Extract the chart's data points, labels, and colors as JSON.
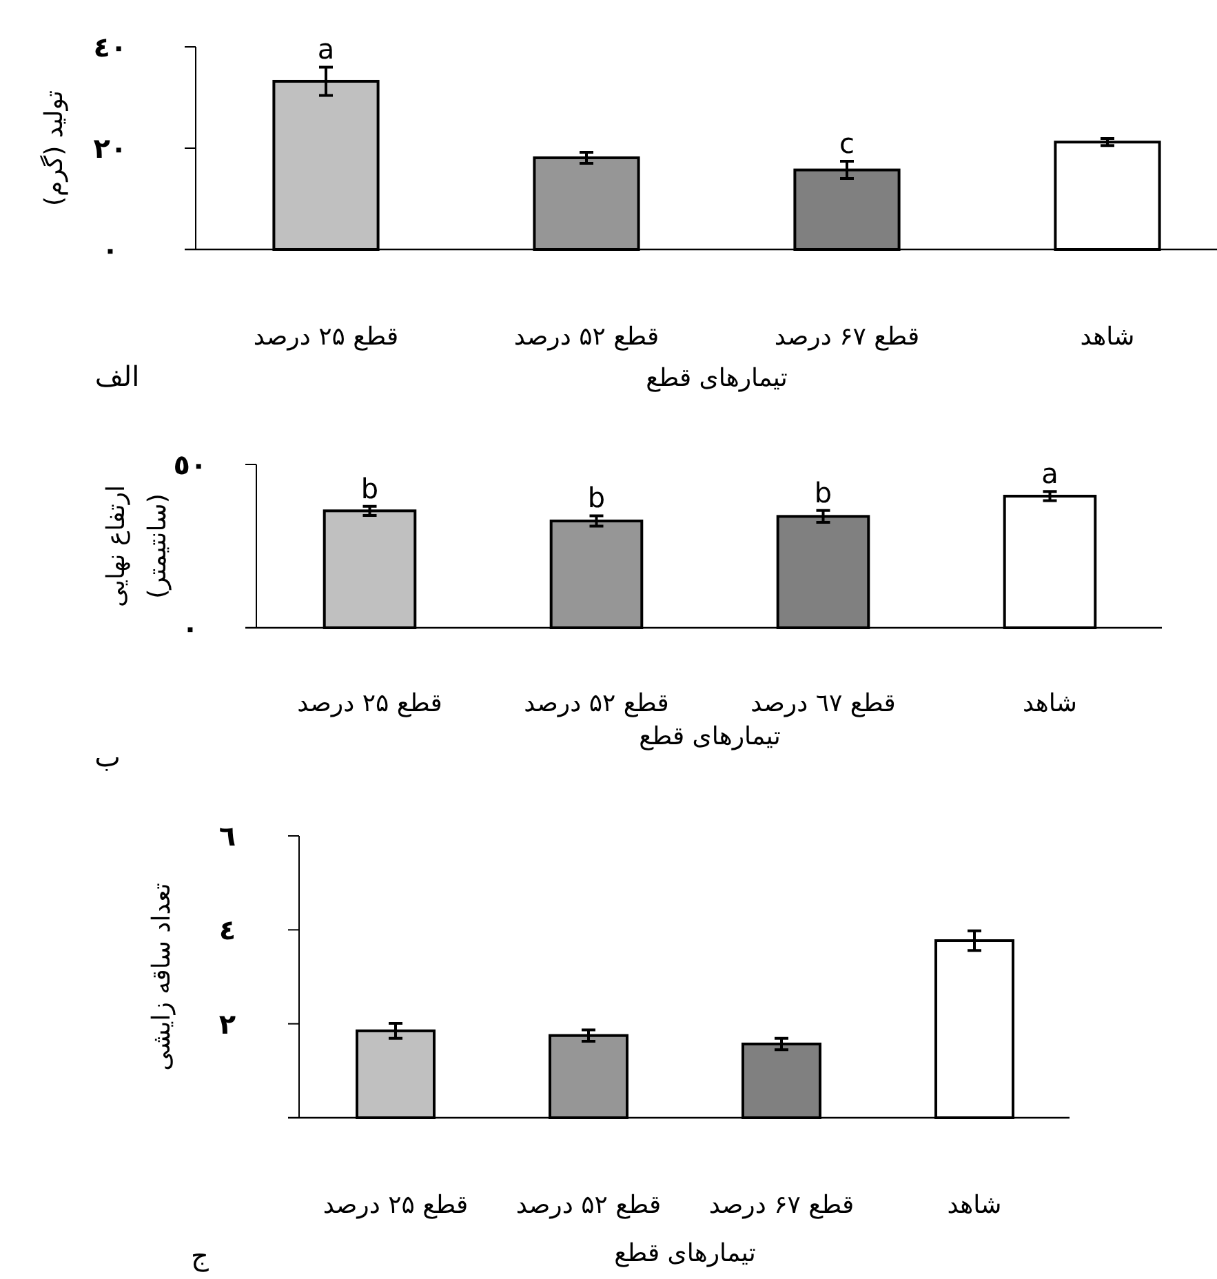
{
  "chart_data": [
    {
      "type": "bar",
      "categories": [
        "قطع ۲۵ درصد",
        "قطع ۵۲ درصد",
        "قطع ۶۷ درصد",
        "شاهد"
      ],
      "values": [
        33.2,
        18.1,
        15.7,
        21.2
      ],
      "colors": [
        "#c0c0c0",
        "#969696",
        "#808080",
        "#ffffff"
      ],
      "errors": [
        2.8,
        1.1,
        1.7,
        0.7
      ],
      "ylim": [
        0,
        40
      ],
      "yticks": [
        {
          "value": 0,
          "label": "٠"
        },
        {
          "value": 20,
          "label": "٢٠"
        },
        {
          "value": 40,
          "label": "٤٠"
        }
      ],
      "xlabel": "تیمارهای قطع",
      "ylabel": "تولید (گرم)",
      "annotations": [
        {
          "text": "a",
          "x": "قطع ۲۵ درصد",
          "y": 33.2
        },
        {
          "text": "c",
          "x": "قطع ۶۷ درصد",
          "y": 15.7
        },
        "الف"
      ]
    },
    {
      "type": "bar",
      "categories": [
        "قطع ۲۵ درصد",
        "قطع ۵۲ درصد",
        "قطع ٦٧ درصد",
        "شاهد"
      ],
      "values": [
        35.8,
        32.7,
        34.1,
        40.3
      ],
      "colors": [
        "#c0c0c0",
        "#969696",
        "#808080",
        "#ffffff"
      ],
      "errors": [
        1.4,
        1.6,
        1.8,
        1.4
      ],
      "ylim": [
        0,
        50
      ],
      "yticks": [
        {
          "value": 0,
          "label": "٠"
        },
        {
          "value": 50,
          "label": "٥٠"
        }
      ],
      "xlabel": "تیمارهای قطع",
      "ylabel": "ارتفاع نهایی (سانتیمتر)",
      "annotations": [
        {
          "text": "b",
          "x": "قطع ۲۵ درصد",
          "y": 35.8
        },
        {
          "text": "b",
          "x": "قطع ۵۲ درصد",
          "y": 32.7
        },
        {
          "text": "b",
          "x": "قطع ٦٧ درصد",
          "y": 34.1
        },
        {
          "text": "a",
          "x": "شاهد",
          "y": 40.3
        },
        "ب"
      ]
    },
    {
      "type": "bar",
      "categories": [
        "قطع ۲۵ درصد",
        "قطع ۵۲ درصد",
        "قطع ۶۷ درصد",
        "شاهد"
      ],
      "values": [
        1.85,
        1.75,
        1.57,
        3.77
      ],
      "colors": [
        "#c0c0c0",
        "#969696",
        "#808080",
        "#ffffff"
      ],
      "errors": [
        0.16,
        0.12,
        0.12,
        0.21
      ],
      "ylim": [
        0,
        6
      ],
      "yticks": [
        {
          "value": 0,
          "label": null
        },
        {
          "value": 2,
          "label": "٢"
        },
        {
          "value": 4,
          "label": "٤"
        },
        {
          "value": 6,
          "label": "٦"
        }
      ],
      "xlabel": "تیمارهای قطع",
      "ylabel": "تعداد ساقه زایشی",
      "annotations": [
        "ج"
      ]
    }
  ]
}
